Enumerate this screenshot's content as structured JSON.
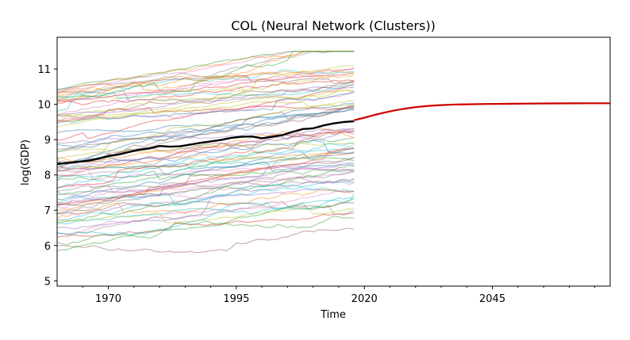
{
  "chart_data": {
    "type": "line",
    "title": "COL (Neural Network (Clusters))",
    "xlabel": "Time",
    "ylabel": "log(GDP)",
    "xlim": [
      1960,
      2068
    ],
    "ylim": [
      4.85,
      11.9
    ],
    "x_ticks": [
      1970,
      1995,
      2020,
      2045
    ],
    "y_ticks": [
      5,
      6,
      7,
      8,
      9,
      10,
      11
    ],
    "grid": false,
    "legend": "none",
    "background_series": {
      "description_visible": false,
      "x_range": [
        1960,
        2018
      ],
      "count": 80,
      "y_range": [
        5.25,
        11.5
      ],
      "opacity": 0.45
    },
    "series": [
      {
        "role": "historical",
        "color": "#000000",
        "x": [
          1960,
          1962,
          1964,
          1966,
          1968,
          1970,
          1972,
          1974,
          1976,
          1978,
          1980,
          1982,
          1984,
          1986,
          1988,
          1990,
          1992,
          1994,
          1996,
          1998,
          2000,
          2002,
          2004,
          2006,
          2008,
          2010,
          2012,
          2014,
          2016,
          2018
        ],
        "values": [
          8.31,
          8.34,
          8.37,
          8.4,
          8.46,
          8.53,
          8.58,
          8.65,
          8.71,
          8.75,
          8.82,
          8.8,
          8.81,
          8.86,
          8.91,
          8.95,
          8.99,
          9.05,
          9.08,
          9.09,
          9.04,
          9.08,
          9.13,
          9.22,
          9.3,
          9.32,
          9.4,
          9.46,
          9.5,
          9.52
        ]
      },
      {
        "role": "forecast",
        "color": "#cc0000",
        "x": [
          2018,
          2020,
          2022,
          2024,
          2026,
          2028,
          2030,
          2032,
          2034,
          2036,
          2038,
          2040,
          2044,
          2048,
          2052,
          2056,
          2060,
          2064,
          2068
        ],
        "values": [
          9.55,
          9.62,
          9.7,
          9.77,
          9.83,
          9.88,
          9.92,
          9.95,
          9.97,
          9.985,
          9.995,
          10.0,
          10.01,
          10.015,
          10.02,
          10.025,
          10.028,
          10.03,
          10.03
        ]
      }
    ],
    "colors": {
      "historical": "#000000",
      "forecast": "#cc0000",
      "forecast_band": "#f4a582"
    }
  }
}
